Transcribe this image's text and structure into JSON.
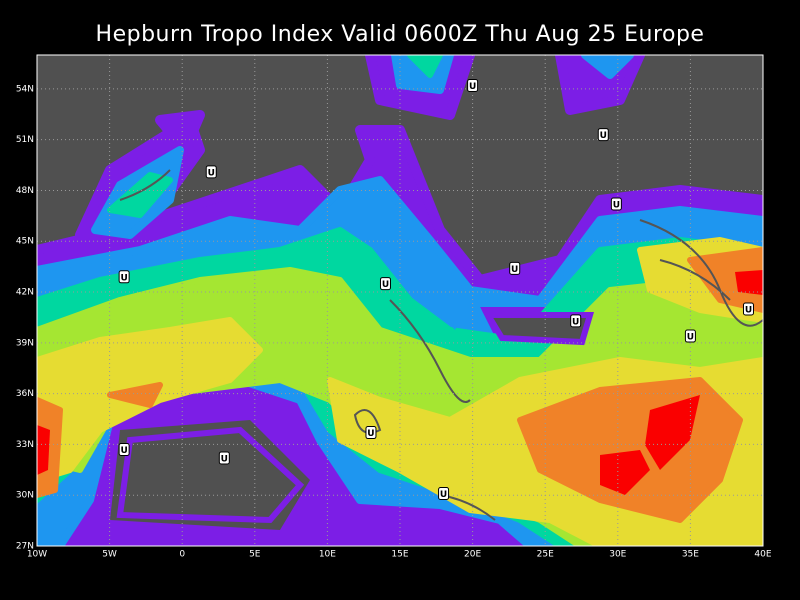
{
  "title": "Hepburn Tropo Index Valid 0600Z Thu Aug 25 Europe",
  "map": {
    "lon_range": [
      -10,
      40
    ],
    "lat_range": [
      27,
      56
    ],
    "lon_ticks": [
      {
        "value": -10,
        "label": "10W"
      },
      {
        "value": -5,
        "label": "5W"
      },
      0,
      {
        "value": 5,
        "label": "5E"
      },
      {
        "value": 10,
        "label": "10E"
      },
      {
        "value": 15,
        "label": "15E"
      },
      {
        "value": 20,
        "label": "20E"
      },
      {
        "value": 25,
        "label": "25E"
      },
      {
        "value": 30,
        "label": "30E"
      },
      {
        "value": 35,
        "label": "35E"
      },
      {
        "value": 40,
        "label": "40E"
      }
    ],
    "lat_ticks": [
      {
        "value": 27,
        "label": "27N"
      },
      {
        "value": 30,
        "label": "30N"
      },
      {
        "value": 33,
        "label": "33N"
      },
      {
        "value": 36,
        "label": "36N"
      },
      {
        "value": 39,
        "label": "39N"
      },
      {
        "value": 42,
        "label": "42N"
      },
      {
        "value": 45,
        "label": "45N"
      },
      {
        "value": 48,
        "label": "48N"
      },
      {
        "value": 51,
        "label": "51N"
      },
      {
        "value": 54,
        "label": "54N"
      }
    ],
    "markers": [
      {
        "label": "U",
        "lon": 20,
        "lat": 54.2
      },
      {
        "label": "U",
        "lon": 29,
        "lat": 51.3
      },
      {
        "label": "U",
        "lon": 2,
        "lat": 49.1
      },
      {
        "label": "U",
        "lon": 29.9,
        "lat": 47.2
      },
      {
        "label": "U",
        "lon": 22.9,
        "lat": 43.4
      },
      {
        "label": "U",
        "lon": -4,
        "lat": 42.9
      },
      {
        "label": "U",
        "lon": 14,
        "lat": 42.5
      },
      {
        "label": "U",
        "lon": 27.1,
        "lat": 40.3
      },
      {
        "label": "U",
        "lon": 39,
        "lat": 41
      },
      {
        "label": "U",
        "lon": 35,
        "lat": 39.4
      },
      {
        "label": "U",
        "lon": 13,
        "lat": 33.7
      },
      {
        "label": "U",
        "lon": -4,
        "lat": 32.7
      },
      {
        "label": "U",
        "lon": 2.9,
        "lat": 32.2
      },
      {
        "label": "U",
        "lon": 18,
        "lat": 30.1
      }
    ]
  }
}
